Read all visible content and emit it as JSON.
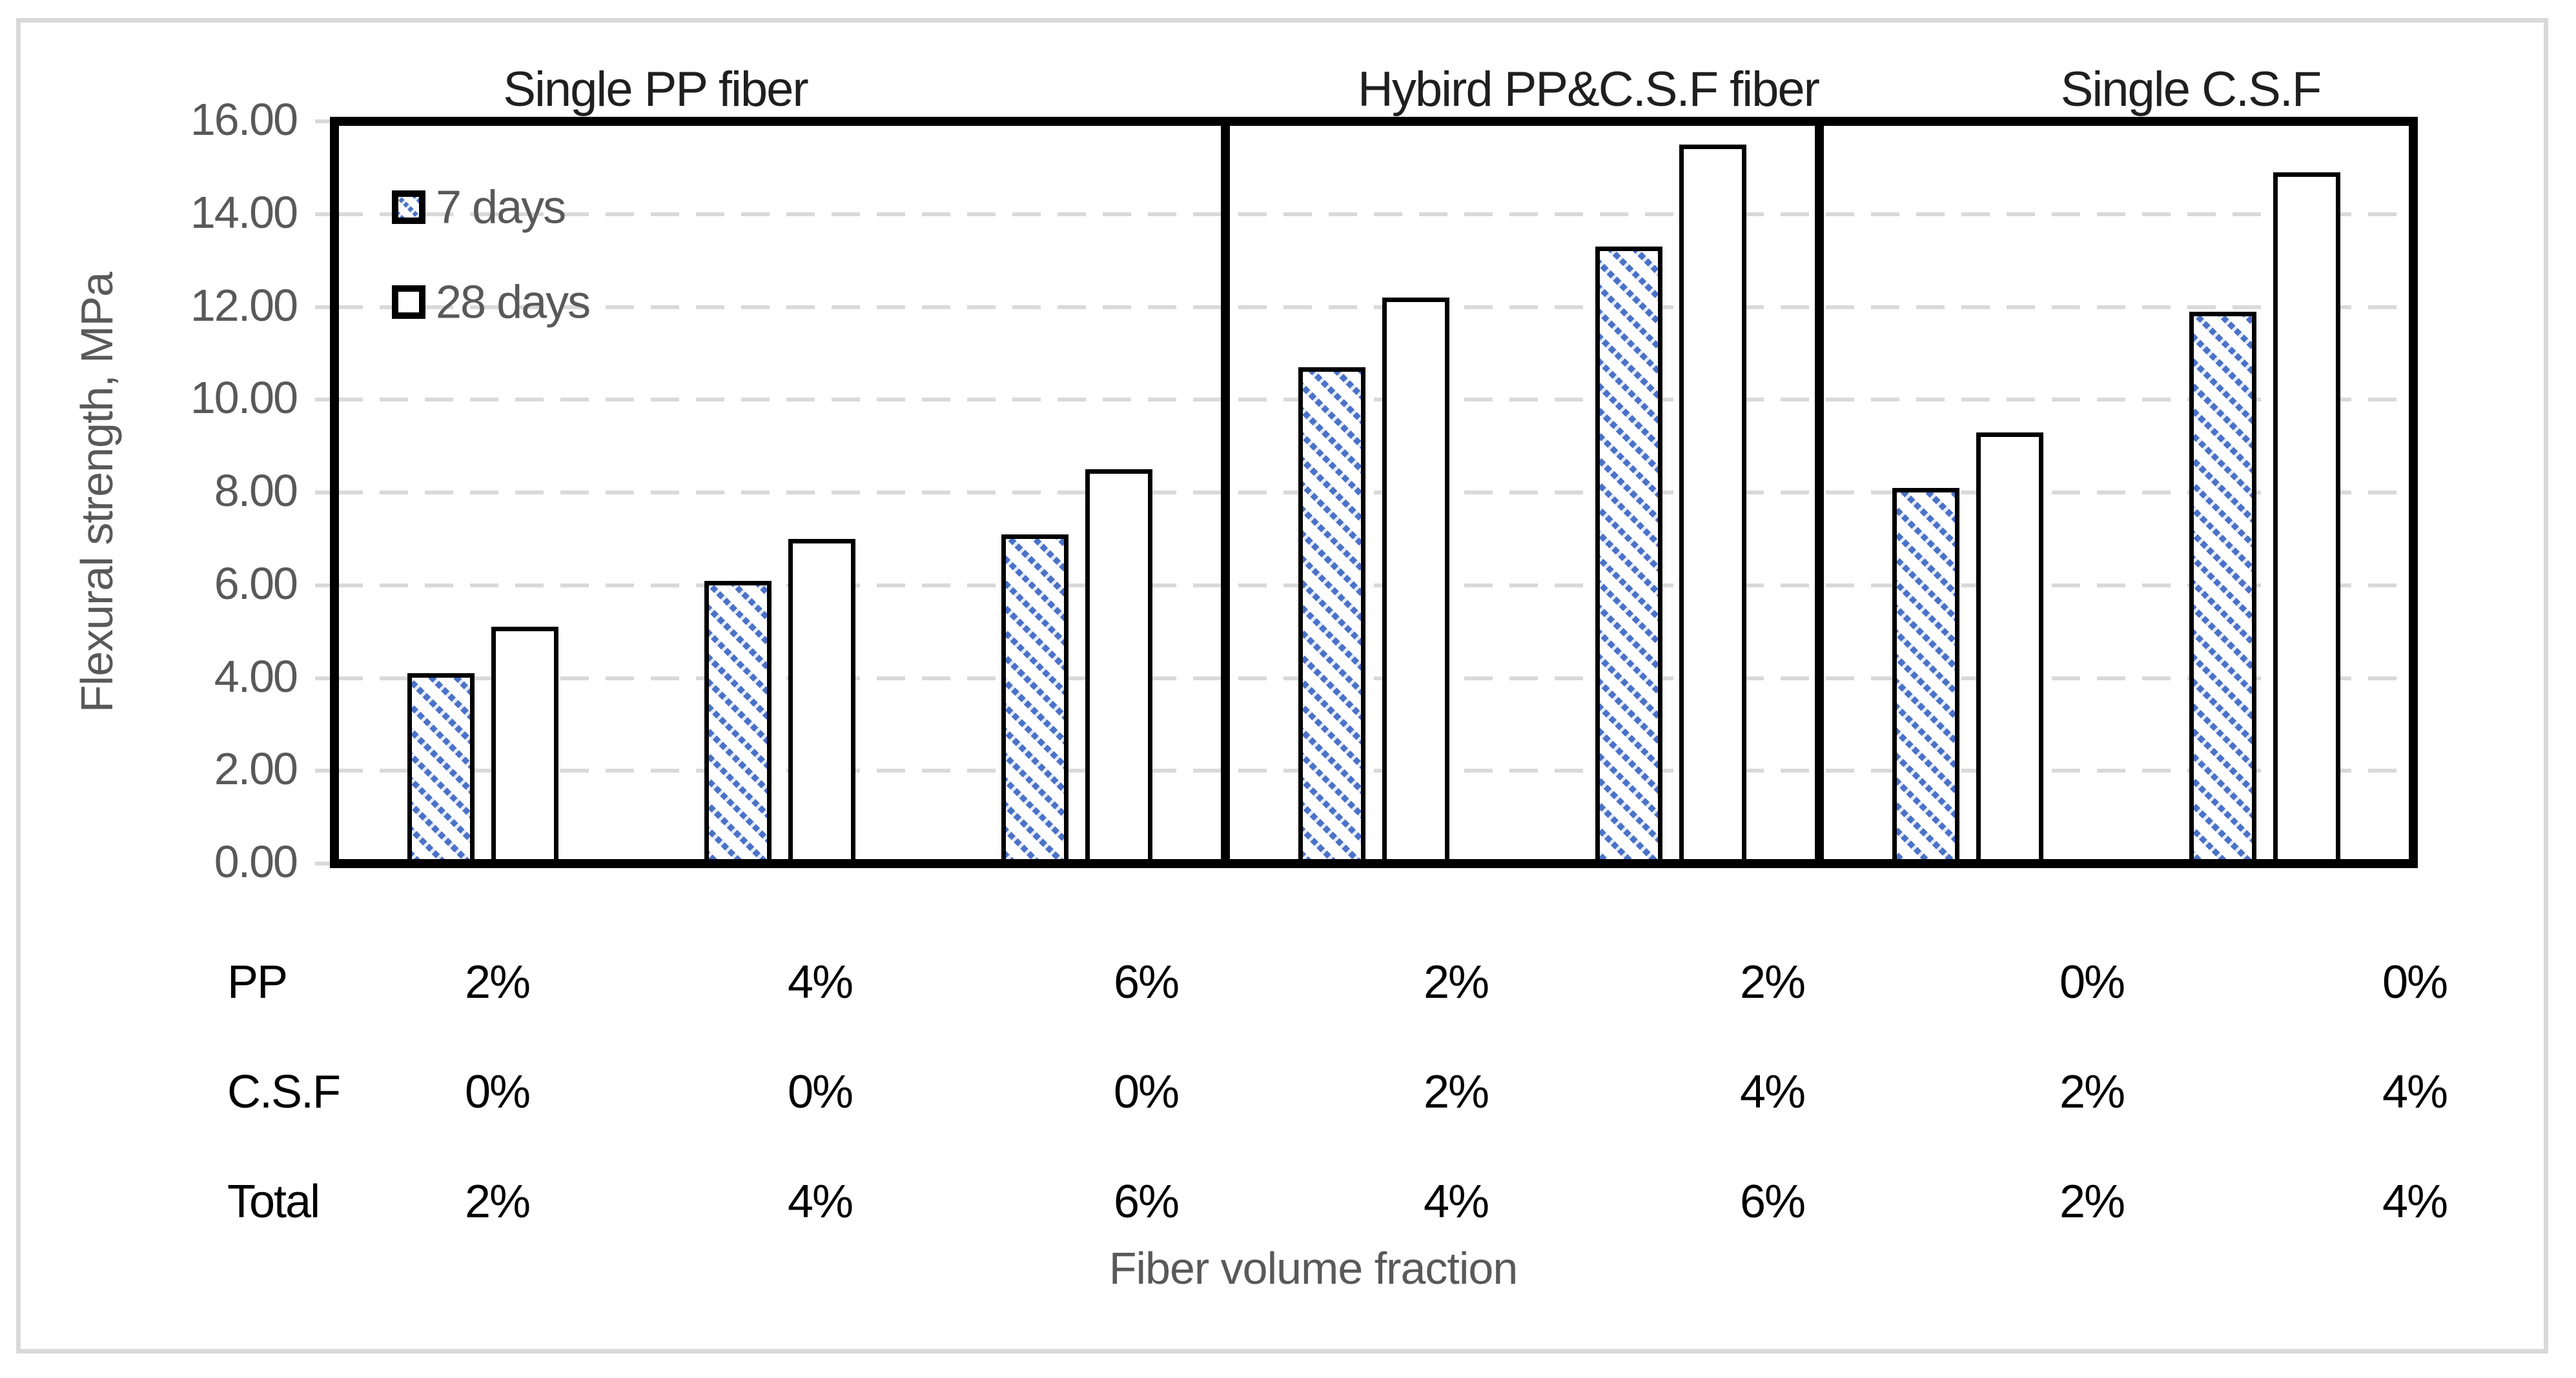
{
  "figure": {
    "y_axis": {
      "title": "Flexural strength, MPa",
      "tick_format_decimals": 2,
      "min": 0,
      "max": 16,
      "step": 2
    },
    "x_axis": {
      "title": "Fiber volume fraction"
    },
    "legend": {
      "items": [
        {
          "label": "7 days",
          "swatch": "blue-diagonal-hatch"
        },
        {
          "label": "28 days",
          "swatch": "white"
        }
      ]
    },
    "panels": [
      {
        "title": "Single PP fiber"
      },
      {
        "title": "Hybird PP&C.S.F fiber"
      },
      {
        "title": "Single C.S.F"
      }
    ],
    "table": {
      "row_labels": [
        "PP",
        "C.S.F",
        "Total"
      ],
      "rows": [
        [
          "2%",
          "4%",
          "6%",
          "2%",
          "2%",
          "0%",
          "0%"
        ],
        [
          "0%",
          "0%",
          "0%",
          "2%",
          "4%",
          "2%",
          "4%"
        ],
        [
          "2%",
          "4%",
          "6%",
          "4%",
          "6%",
          "2%",
          "4%"
        ]
      ]
    },
    "colors": {
      "hatch_blue": "#4a72c8",
      "grid_gray": "#d9d9d9",
      "text_gray": "#595959",
      "border_black": "#000000",
      "frame_gray": "#d9d9d9"
    }
  },
  "chart_data": {
    "type": "bar",
    "title": "",
    "xlabel": "Fiber volume fraction",
    "ylabel": "Flexural strength, MPa",
    "ylim": [
      0,
      16
    ],
    "ytick_step": 2,
    "grid": true,
    "legend_position": "top-left-inside",
    "categories": [
      {
        "PP": "2%",
        "CSF": "0%",
        "Total": "2%",
        "panel": "Single PP fiber"
      },
      {
        "PP": "4%",
        "CSF": "0%",
        "Total": "4%",
        "panel": "Single PP fiber"
      },
      {
        "PP": "6%",
        "CSF": "0%",
        "Total": "6%",
        "panel": "Single PP fiber"
      },
      {
        "PP": "2%",
        "CSF": "2%",
        "Total": "4%",
        "panel": "Hybird PP&C.S.F fiber"
      },
      {
        "PP": "2%",
        "CSF": "4%",
        "Total": "6%",
        "panel": "Hybird PP&C.S.F fiber"
      },
      {
        "PP": "0%",
        "CSF": "2%",
        "Total": "2%",
        "panel": "Single C.S.F"
      },
      {
        "PP": "0%",
        "CSF": "4%",
        "Total": "4%",
        "panel": "Single C.S.F"
      }
    ],
    "series": [
      {
        "name": "7 days",
        "values": [
          4.1,
          6.1,
          7.1,
          10.7,
          13.3,
          8.1,
          11.9
        ]
      },
      {
        "name": "28 days",
        "values": [
          5.1,
          7.0,
          8.5,
          12.2,
          15.5,
          9.3,
          14.9
        ]
      }
    ],
    "panel_dividers_after_category": [
      3,
      5
    ]
  }
}
